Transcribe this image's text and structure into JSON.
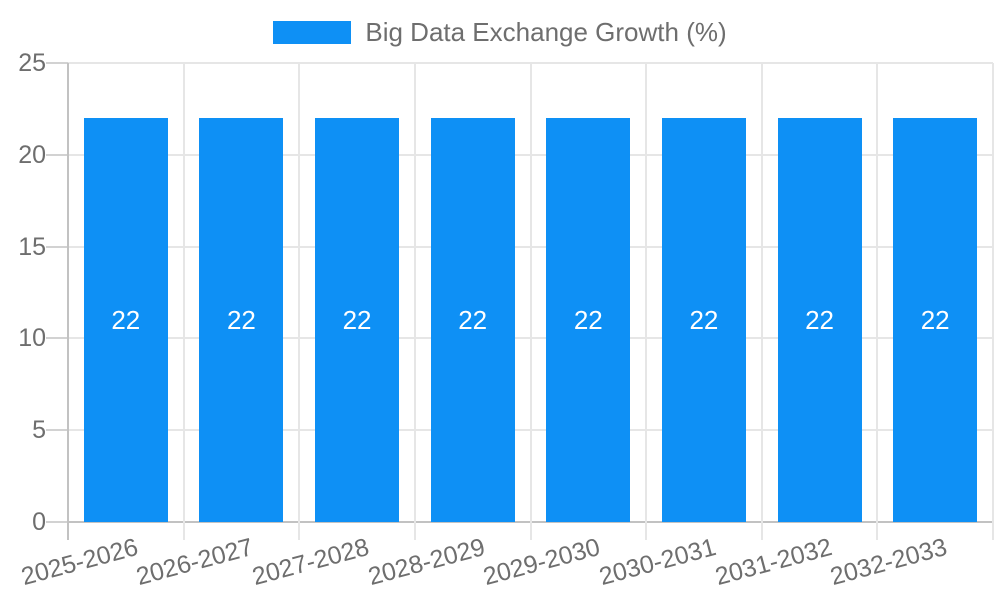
{
  "legend": {
    "label": "Big Data Exchange Growth (%)"
  },
  "chart_data": {
    "type": "bar",
    "title": "Big Data Exchange Growth (%)",
    "categories": [
      "2025-2026",
      "2026-2027",
      "2027-2028",
      "2028-2029",
      "2029-2030",
      "2030-2031",
      "2031-2032",
      "2032-2033"
    ],
    "values": [
      22,
      22,
      22,
      22,
      22,
      22,
      22,
      22
    ],
    "bar_labels": [
      "22",
      "22",
      "22",
      "22",
      "22",
      "22",
      "22",
      "22"
    ],
    "y_tick_labels": [
      "0",
      "5",
      "10",
      "15",
      "20",
      "25"
    ],
    "yticks": [
      0,
      5,
      10,
      15,
      20,
      25
    ],
    "ylim": [
      0,
      25
    ],
    "xlabel": "",
    "ylabel": "",
    "grid": true,
    "legend_position": "top",
    "colors": {
      "bar_fill": "#0e90f5",
      "bar_label": "#ffffff",
      "gridline": "#e6e6e6",
      "axis_line": "#c2c2c2",
      "tick_line": "#d2d2d2",
      "tick_text": "#6e6e6e",
      "background": "#ffffff"
    }
  }
}
